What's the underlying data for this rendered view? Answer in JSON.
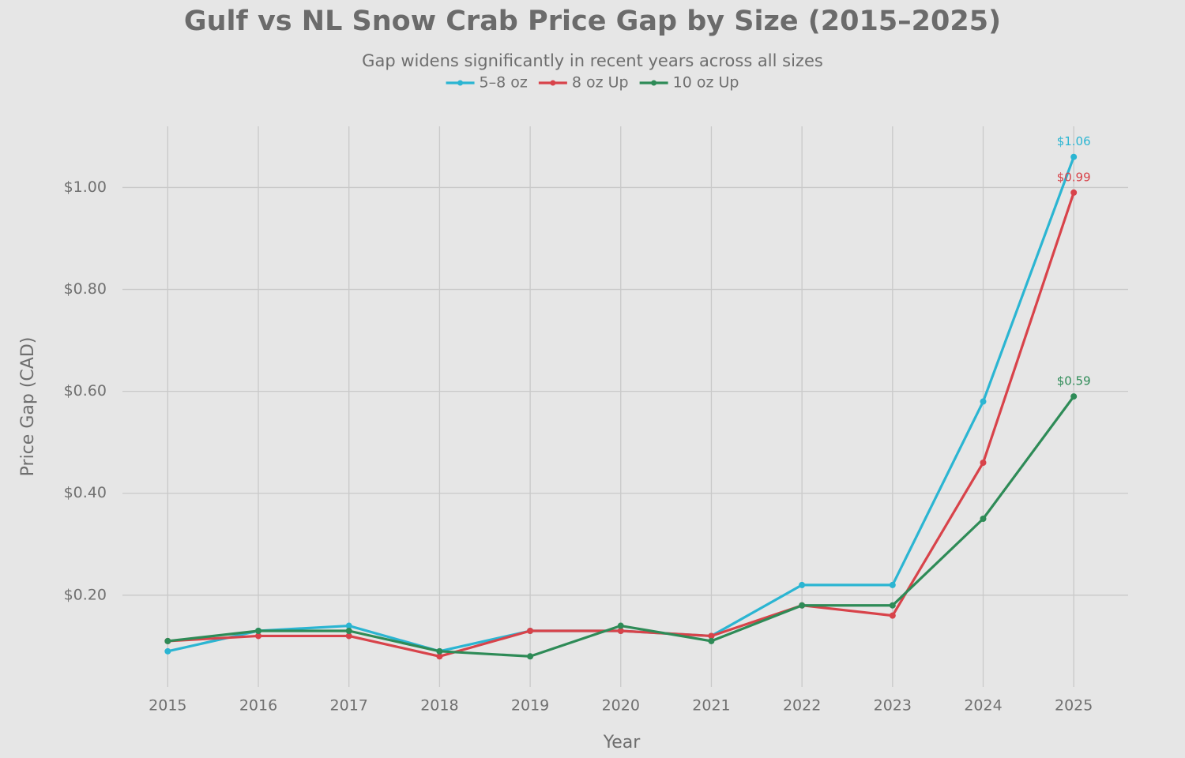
{
  "chart_data": {
    "type": "line",
    "title": "Gulf vs NL Snow Crab Price Gap by Size (2015–2025)",
    "subtitle": "Gap widens significantly in recent years across all sizes",
    "x_label": "Year",
    "y_label": "Price Gap (CAD)",
    "x": [
      2015,
      2016,
      2017,
      2018,
      2019,
      2020,
      2021,
      2022,
      2023,
      2024,
      2025
    ],
    "series": [
      {
        "name": "5–8 oz",
        "color": "#2bb5d2",
        "values": [
          0.09,
          0.13,
          0.14,
          0.09,
          0.13,
          0.13,
          0.12,
          0.22,
          0.22,
          0.58,
          1.06
        ],
        "value_labels": [
          null,
          null,
          null,
          null,
          null,
          null,
          null,
          null,
          null,
          null,
          "$1.06"
        ]
      },
      {
        "name": "8 oz Up",
        "color": "#d8434a",
        "values": [
          0.11,
          0.12,
          0.12,
          0.08,
          0.13,
          0.13,
          0.12,
          0.18,
          0.16,
          0.46,
          0.99
        ],
        "value_labels": [
          null,
          null,
          null,
          null,
          null,
          null,
          null,
          null,
          null,
          null,
          "$0.99"
        ]
      },
      {
        "name": "10 oz Up",
        "color": "#2e8b57",
        "values": [
          0.11,
          0.13,
          0.13,
          0.09,
          0.08,
          0.14,
          0.11,
          0.18,
          0.18,
          0.35,
          0.59
        ],
        "value_labels": [
          null,
          null,
          null,
          null,
          null,
          null,
          null,
          null,
          null,
          null,
          "$0.59"
        ]
      }
    ],
    "xlim": [
      2014.5,
      2025.6
    ],
    "xticks": [
      2015,
      2016,
      2017,
      2018,
      2019,
      2020,
      2021,
      2022,
      2023,
      2024,
      2025
    ],
    "ylim": [
      0.02,
      1.12
    ],
    "yticks": [
      {
        "value": 0.2,
        "label": "$0.20"
      },
      {
        "value": 0.4,
        "label": "$0.40"
      },
      {
        "value": 0.6,
        "label": "$0.60"
      },
      {
        "value": 0.8,
        "label": "$0.80"
      },
      {
        "value": 1.0,
        "label": "$1.00"
      }
    ],
    "grid": true,
    "legend": "top"
  }
}
